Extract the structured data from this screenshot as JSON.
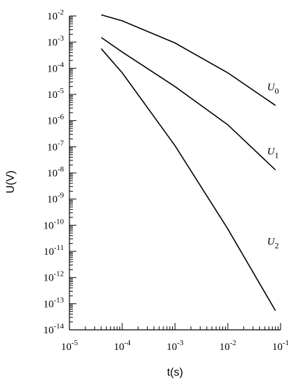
{
  "chart_data": {
    "type": "line",
    "x_label": "t(s)",
    "y_label": "U(V)",
    "xscale": "log",
    "yscale": "log",
    "minor_ticks": true,
    "xlim": [
      1e-05,
      0.1
    ],
    "ylim": [
      1e-14,
      0.01
    ],
    "xticks": [
      {
        "value": 1e-05,
        "label": "10",
        "exponent": "-5"
      },
      {
        "value": 0.0001,
        "label": "10",
        "exponent": "-4"
      },
      {
        "value": 0.001,
        "label": "10",
        "exponent": "-3"
      },
      {
        "value": 0.01,
        "label": "10",
        "exponent": "-2"
      },
      {
        "value": 0.1,
        "label": "10",
        "exponent": "-1"
      }
    ],
    "yticks": [
      {
        "value": 0.01,
        "label": "10",
        "exponent": "-2"
      },
      {
        "value": 0.001,
        "label": "10",
        "exponent": "-3"
      },
      {
        "value": 0.0001,
        "label": "10",
        "exponent": "-4"
      },
      {
        "value": 1e-05,
        "label": "10",
        "exponent": "-5"
      },
      {
        "value": 1e-06,
        "label": "10",
        "exponent": "-6"
      },
      {
        "value": 1e-07,
        "label": "10",
        "exponent": "-7"
      },
      {
        "value": 1e-08,
        "label": "10",
        "exponent": "-8"
      },
      {
        "value": 1e-09,
        "label": "10",
        "exponent": "-9"
      },
      {
        "value": 1e-10,
        "label": "10",
        "exponent": "-10"
      },
      {
        "value": 1e-11,
        "label": "10",
        "exponent": "-11"
      },
      {
        "value": 1e-12,
        "label": "10",
        "exponent": "-12"
      },
      {
        "value": 1e-13,
        "label": "10",
        "exponent": "-13"
      },
      {
        "value": 1e-14,
        "label": "10",
        "exponent": "-14"
      }
    ],
    "x": [
      4e-05,
      0.0001,
      0.001,
      0.01,
      0.08
    ],
    "series": [
      {
        "name": "U",
        "subscript": "0",
        "color": "#000000",
        "values": [
          0.011,
          0.0065,
          0.00093,
          6.7e-05,
          3.8e-06
        ]
      },
      {
        "name": "U",
        "subscript": "1",
        "color": "#000000",
        "values": [
          0.0015,
          0.00042,
          2e-05,
          6.9e-07,
          1.3e-08
        ]
      },
      {
        "name": "U",
        "subscript": "2",
        "color": "#000000",
        "values": [
          0.00056,
          6.7e-05,
          1.1e-07,
          7.2e-11,
          5.4e-14
        ]
      }
    ]
  }
}
